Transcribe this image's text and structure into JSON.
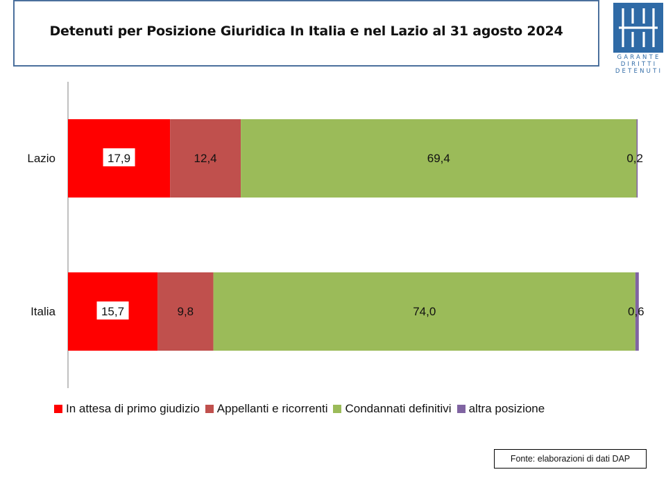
{
  "title": "Detenuti per Posizione Giuridica  In Italia e nel Lazio al 31 agosto 2024",
  "logo": {
    "lines": [
      "GARANTE",
      "DIRITTI",
      "DETENUTI"
    ]
  },
  "source": "Fonte: elaborazioni di dati DAP",
  "chart_data": {
    "type": "bar",
    "orientation": "horizontal",
    "stacked": true,
    "categories": [
      "Lazio",
      "Italia"
    ],
    "series": [
      {
        "name": "In attesa di primo giudizio",
        "color": "#ff0000",
        "values": [
          17.9,
          15.7
        ],
        "labels": [
          "17,9",
          "15,7"
        ]
      },
      {
        "name": "Appellanti e ricorrenti",
        "color": "#c0504d",
        "values": [
          12.4,
          9.8
        ],
        "labels": [
          "12,4",
          "9,8"
        ]
      },
      {
        "name": "Condannati definitivi",
        "color": "#9bbb59",
        "values": [
          69.4,
          74.0
        ],
        "labels": [
          "69,4",
          "74,0"
        ]
      },
      {
        "name": "altra posizione",
        "color": "#8064a2",
        "values": [
          0.2,
          0.6
        ],
        "labels": [
          "0,2",
          "0,6"
        ]
      }
    ],
    "xlim": [
      0,
      100
    ],
    "legend_position": "bottom",
    "grid": false
  }
}
